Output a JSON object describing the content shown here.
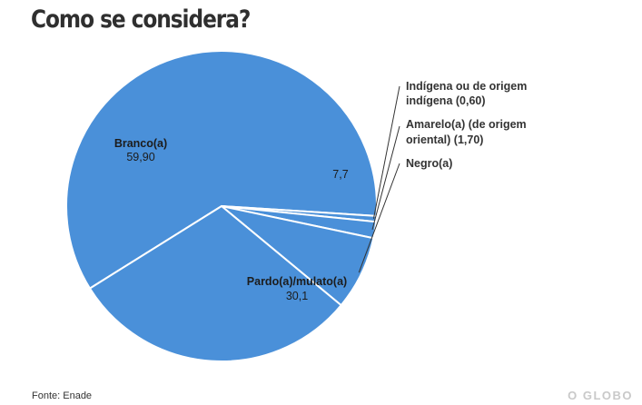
{
  "chart_data": {
    "type": "pie",
    "title": "Como se considera?",
    "slices": [
      {
        "name": "Branco(a)",
        "value": 59.9,
        "value_label": "59,90"
      },
      {
        "name": "Indígena ou de origem indígena",
        "value": 0.6,
        "value_label": "0,60"
      },
      {
        "name": "Amarelo(a) (de origem oriental)",
        "value": 1.7,
        "value_label": "1,70"
      },
      {
        "name": "Negro(a)",
        "value": 7.7,
        "value_label": "7,7"
      },
      {
        "name": "Pardo(a)/mulato(a)",
        "value": 30.1,
        "value_label": "30,1"
      }
    ],
    "outside_labels": {
      "indigena": [
        "Indígena ou de origem",
        "indígena (0,60)"
      ],
      "amarelo": [
        "Amarelo(a) (de origem",
        "oriental) (1,70)"
      ],
      "negro": [
        "Negro(a)"
      ]
    },
    "colors": {
      "slice": "#4a90d9",
      "stroke": "#ffffff"
    },
    "source": "Fonte: Enade",
    "brand": "O GLOBO"
  }
}
